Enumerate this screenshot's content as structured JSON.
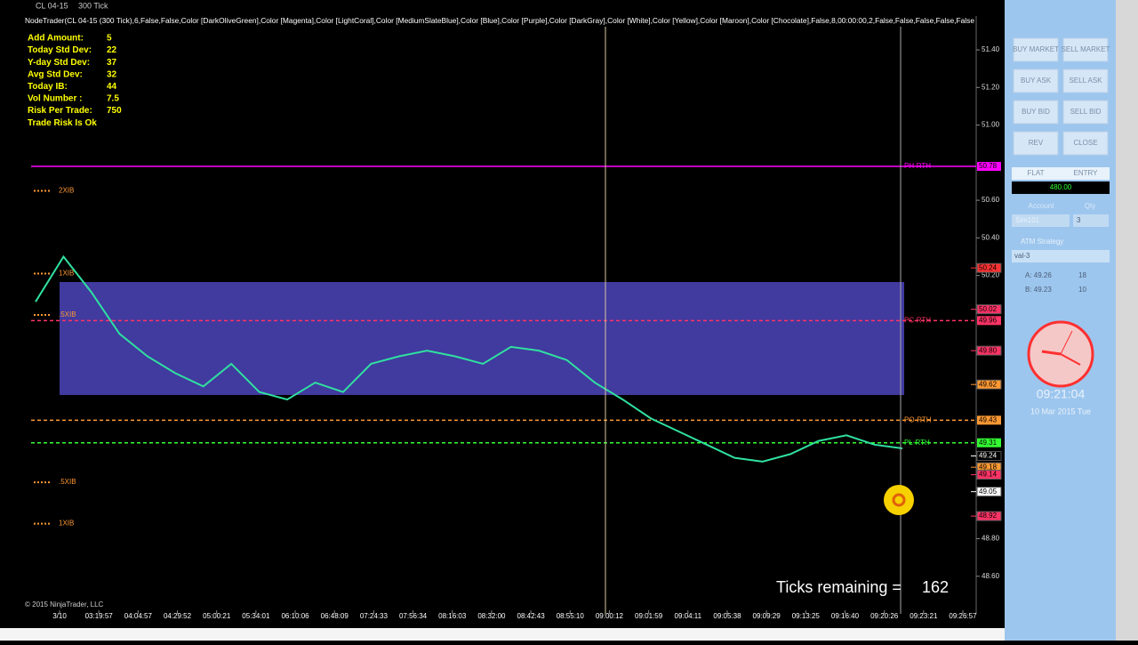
{
  "toolbar": {
    "instrument": "CL 04-15",
    "interval": "300 Tick",
    "indicator": "NodeTrader(CL 04-15 (300 Tick),6,False,False,Color [DarkOliveGreen],Color [Magenta],Color [LightCoral],Color [MediumSlateBlue],Color [Blue],Color [Purple],Color [DarkGray],Color [White],Color [Yellow],Color [Maroon],Color [Chocolate],False,8,00:00:00,2,False,False,False,False,False"
  },
  "info": [
    {
      "label": "Add Amount:",
      "value": 5
    },
    {
      "label": "Today Std Dev:",
      "value": 22
    },
    {
      "label": "Y-day Std Dev:",
      "value": 37
    },
    {
      "label": "Avg Std Dev:",
      "value": 32
    },
    {
      "label": "Today IB:",
      "value": 44
    },
    {
      "label": "Vol Number :",
      "value": 7.5
    },
    {
      "label": "Risk Per Trade:",
      "value": 750
    },
    {
      "label": "Trade Risk Is Ok"
    }
  ],
  "chart": {
    "ylim": [
      48.4,
      51.58
    ],
    "yticks": [
      {
        "value": 48.6,
        "label": "48.60"
      },
      {
        "value": 48.8,
        "label": "48.80"
      },
      {
        "value": 50.2,
        "label": "50.20"
      },
      {
        "value": 50.4,
        "label": "50.40"
      },
      {
        "value": 50.6,
        "label": "50.60"
      },
      {
        "value": 51,
        "label": "51.00"
      },
      {
        "value": 51.2,
        "label": "51.20"
      },
      {
        "value": 51.4,
        "label": "51.40"
      }
    ],
    "times": [
      "3/10",
      "03:19:57",
      "04:04:57",
      "04:29:52",
      "05:00:21",
      "05:34:01",
      "06:10:06",
      "06:48:09",
      "07:24:33",
      "07:56:34",
      "08:16:03",
      "08:32:00",
      "08:42:43",
      "08:55:10",
      "09:00:12",
      "09:01:59",
      "09:04:11",
      "09:05:38",
      "09:09:29",
      "09:13:25",
      "09:16:40",
      "09:20:26",
      "09:23:21",
      "09:26:57"
    ],
    "levels": [
      {
        "name": "PH-RTH",
        "value": 50.78,
        "label": "50.78",
        "color": "#ff00ff"
      },
      {
        "name": "PC-RTH",
        "value": 49.96,
        "label": "49.96",
        "color": "#ff3366"
      },
      {
        "name": "PO-RTH",
        "value": 49.43,
        "label": "49.43",
        "color": "#ff9933"
      },
      {
        "name": "PL-RTH",
        "value": 49.31,
        "label": "49.31",
        "color": "#33ff33"
      }
    ],
    "price_labels": [
      {
        "value": 50.24,
        "label": "50.24",
        "color": "#ff3333"
      },
      {
        "value": 50.02,
        "label": "50.02",
        "color": "#ff3366"
      },
      {
        "value": 49.8,
        "label": "49.80",
        "color": "#ff3366"
      },
      {
        "value": 49.62,
        "label": "49.62",
        "color": "#ff9933"
      },
      {
        "value": 49.24,
        "label": "49.24",
        "color": "#000000"
      },
      {
        "value": 49.18,
        "label": "49.18",
        "color": "#ff9933"
      },
      {
        "value": 49.14,
        "label": "49.14",
        "color": "#ff3366"
      },
      {
        "value": 49.05,
        "label": "49.05",
        "color": "#ffffff"
      },
      {
        "value": 48.92,
        "label": "48.92",
        "color": "#ff3366"
      }
    ],
    "ib_levels": [
      {
        "name": "2XIB",
        "value": 50.65
      },
      {
        "name": "1XIB",
        "value": 50.21
      },
      {
        "name": ".5XIB",
        "value": 49.99
      },
      {
        "name": ".5XIB",
        "value": 49.1
      },
      {
        "name": "1XIB",
        "value": 48.88
      }
    ],
    "price": [
      50.06,
      50.3,
      50.11,
      49.89,
      49.77,
      49.68,
      49.61,
      49.73,
      49.58,
      49.54,
      49.63,
      49.58,
      49.73,
      49.77,
      49.8,
      49.77,
      49.73,
      49.82,
      49.8,
      49.75,
      49.63,
      49.54,
      49.44,
      49.37,
      49.3,
      49.23,
      49.21,
      49.25,
      49.32,
      49.35,
      49.3,
      49.28
    ],
    "ticks_remaining": {
      "label": "Ticks remaining =",
      "value": 162
    },
    "copyright": "© 2015 NinjaTrader, LLC"
  },
  "panel": {
    "buttons": [
      "BUY MARKET",
      "SELL MARKET",
      "BUY ASK",
      "SELL ASK",
      "BUY BID",
      "SELL BID",
      "REV",
      "CLOSE"
    ],
    "position": "FLAT",
    "entry": "ENTRY",
    "pnl": "480.00",
    "account": "Account",
    "qty": "Qty",
    "account_value": "Sim101",
    "qty_value": 3,
    "atm": "ATM Strategy",
    "atm_value": "val-3",
    "ask": {
      "label": "A: 49.26",
      "size": 18
    },
    "bid": {
      "label": "B: 49.23",
      "size": 10
    },
    "time": "09:21:04",
    "date": "10 Mar 2015 Tue"
  }
}
